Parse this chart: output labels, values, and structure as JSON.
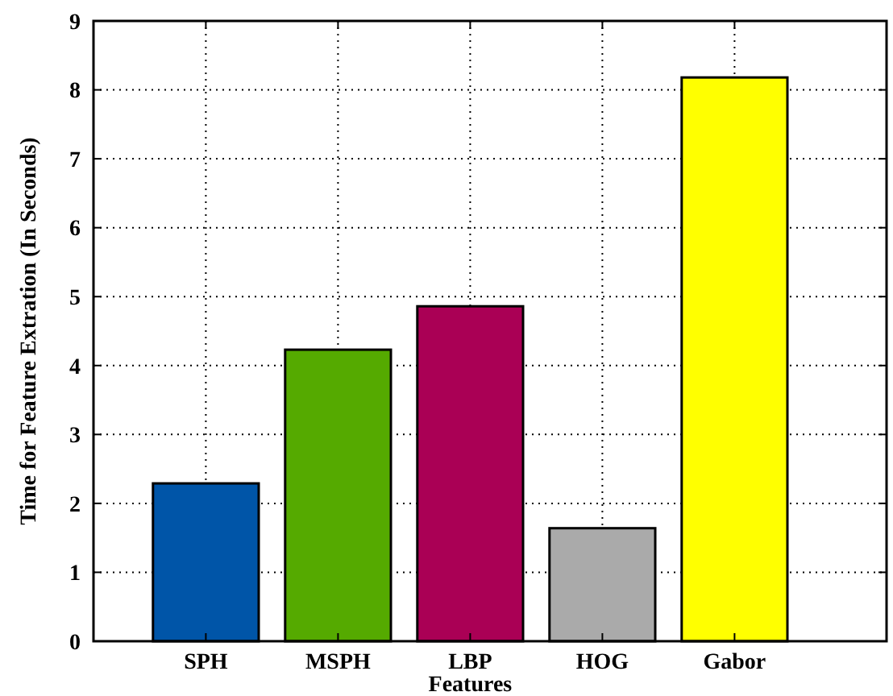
{
  "chart_data": {
    "type": "bar",
    "xlabel": "Features",
    "ylabel": "Time for Feature Extration (In Seconds)",
    "categories": [
      "SPH",
      "MSPH",
      "LBP",
      "HOG",
      "Gabor"
    ],
    "values": [
      2.29,
      4.23,
      4.86,
      1.64,
      8.18
    ],
    "colors": [
      "#0055a8",
      "#55aa00",
      "#aa0055",
      "#aaaaaa",
      "#ffff00"
    ],
    "ylim": [
      0,
      9
    ],
    "yticks": [
      0,
      1,
      2,
      3,
      4,
      5,
      6,
      7,
      8,
      9
    ],
    "grid": true
  }
}
